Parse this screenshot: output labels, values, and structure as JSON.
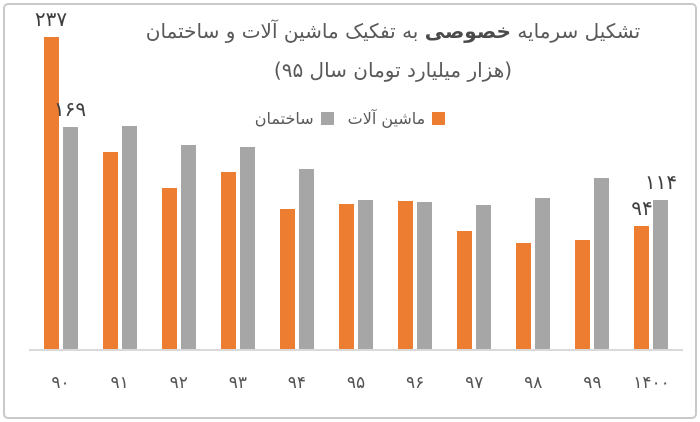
{
  "frame": {
    "background": "#ffffff",
    "border_color": "#c9c9c9"
  },
  "title": {
    "part1": "تشکیل سرمایه",
    "bold": "خصوصی",
    "part2": "به تفکیک ماشین آلات و ساختمان",
    "line2": "(هزار میلیارد تومان سال ۹۵)",
    "color": "#595959"
  },
  "legend": {
    "position": "top-center",
    "items": [
      {
        "key": "machinery",
        "label": "ماشین آلات",
        "color": "#ED7D31"
      },
      {
        "key": "building",
        "label": "ساختمان",
        "color": "#A6A6A6"
      }
    ]
  },
  "chart_data": {
    "type": "bar",
    "title": "تشکیل سرمایه خصوصی به تفکیک ماشین آلات و ساختمان",
    "subtitle": "(هزار میلیارد تومان سال ۹۵)",
    "categories": [
      "۹۰",
      "۹۱",
      "۹۲",
      "۹۳",
      "۹۴",
      "۹۵",
      "۹۶",
      "۹۷",
      "۹۸",
      "۹۹",
      "۱۴۰۰"
    ],
    "series": [
      {
        "key": "machinery",
        "name": "ماشین آلات",
        "color": "#ED7D31",
        "values": [
          237,
          150,
          123,
          135,
          107,
          111,
          113,
          90,
          81,
          83,
          94
        ],
        "data_labels": {
          "0": "۲۳۷",
          "10": "۹۴"
        }
      },
      {
        "key": "building",
        "name": "ساختمان",
        "color": "#A6A6A6",
        "values": [
          169,
          170,
          155,
          154,
          137,
          114,
          112,
          110,
          115,
          130,
          114
        ],
        "data_labels": {
          "0": "۱۶۹",
          "10": "۱۱۴"
        }
      }
    ],
    "ylim": [
      0,
      250
    ],
    "grid": false,
    "y_axis_visible": false,
    "axis_line_color": "#d9d9d9",
    "tick_label_color": "#545454",
    "data_label_color": "#3f3f3f"
  }
}
